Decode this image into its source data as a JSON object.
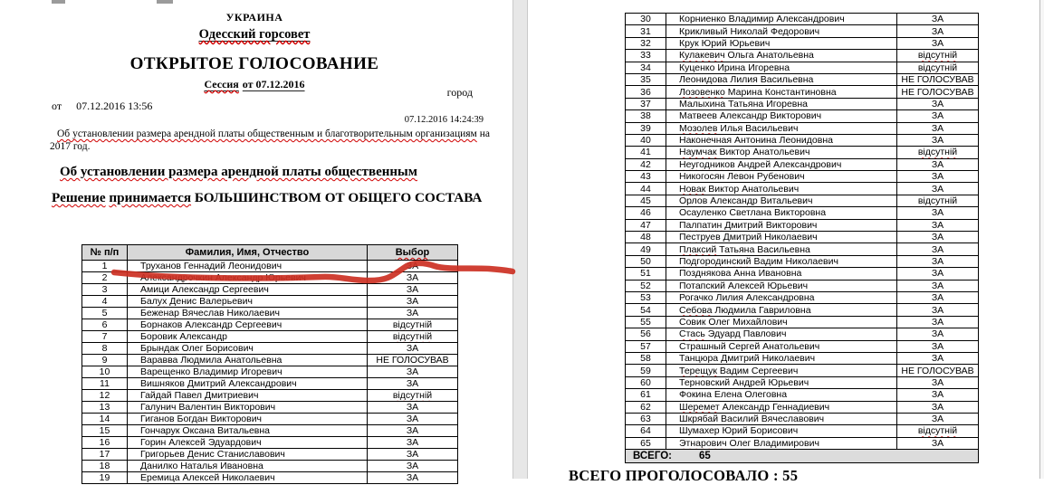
{
  "page_left": {
    "header": {
      "country": "УКРАИНА",
      "council": "Одесский горсовет",
      "title": "ОТКРЫТОЕ ГОЛОСОВАНИЕ",
      "session_word": "Сессия",
      "session_rest": "от 07.12.2016",
      "city_label": "город",
      "from_label": "от",
      "start_datetime": "07.12.2016 13:56",
      "end_datetime": "07.12.2016 14:24:39",
      "subject": "Об установлении размера арендной платы общественным и благотворительным организациям",
      "subject_tail": "на 2017 год.",
      "subject_bold": "Об установлении размера арендной платы общественным",
      "decision_word1": "Решение",
      "decision_word2": "принимается",
      "decision_rest": "БОЛЬШИНСТВОМ ОТ ОБЩЕГО СОСТАВА"
    },
    "table": {
      "headers": [
        "№ п/п",
        "Фамилия, Имя, Отчество",
        "Выбор"
      ],
      "rows": [
        {
          "n": "1",
          "name": "Труханов Геннадий Леонидович",
          "vote": "ЗА",
          "sq": [],
          "u": true
        },
        {
          "n": "2",
          "name": "Александрочкин Александр Юрьевич",
          "vote": "ЗА",
          "sq": [
            0
          ]
        },
        {
          "n": "3",
          "name": "Амици Александр Сергеевич",
          "vote": "ЗА",
          "sq": [
            0
          ]
        },
        {
          "n": "4",
          "name": "Балух Денис Валерьевич",
          "vote": "ЗА",
          "sq": [
            0
          ]
        },
        {
          "n": "5",
          "name": "Беженар Вячеслав Николаевич",
          "vote": "ЗА",
          "sq": [
            0
          ]
        },
        {
          "n": "6",
          "name": "Борнаков Александр Сергеевич",
          "vote": "відсутній",
          "sq": [
            0
          ]
        },
        {
          "n": "7",
          "name": "Боровик Александр",
          "vote": "відсутній",
          "sq": []
        },
        {
          "n": "8",
          "name": "Брындак Олег Борисович",
          "vote": "ЗА",
          "sq": [
            0
          ]
        },
        {
          "n": "9",
          "name": "Варавва Людмила Анатольевна",
          "vote": "НЕ ГОЛОСУВАВ",
          "sq": []
        },
        {
          "n": "10",
          "name": "Варещенко Владимир Игоревич",
          "vote": "ЗА",
          "sq": [
            0
          ]
        },
        {
          "n": "11",
          "name": "Вишняков Дмитрий Александрович",
          "vote": "ЗА",
          "sq": []
        },
        {
          "n": "12",
          "name": "Гайдай Павел Дмитриевич",
          "vote": "відсутній",
          "sq": []
        },
        {
          "n": "13",
          "name": "Галунич Валентин Викторович",
          "vote": "ЗА",
          "sq": [
            0
          ]
        },
        {
          "n": "14",
          "name": "Гиганов Богдан Викторович",
          "vote": "ЗА",
          "sq": [
            0
          ]
        },
        {
          "n": "15",
          "name": "Гончарук Оксана Витальевна",
          "vote": "ЗА",
          "sq": []
        },
        {
          "n": "16",
          "name": "Горин Алексей Эдуардович",
          "vote": "ЗА",
          "sq": []
        },
        {
          "n": "17",
          "name": "Григорьев Денис Станиславович",
          "vote": "ЗА",
          "sq": []
        },
        {
          "n": "18",
          "name": "Данилко Наталья Ивановна",
          "vote": "ЗА",
          "sq": []
        },
        {
          "n": "19",
          "name": "Еремица Алексей Николаевич",
          "vote": "ЗА",
          "sq": []
        }
      ]
    }
  },
  "page_right": {
    "table": {
      "rows": [
        {
          "n": "30",
          "name": "Корниенко Владимир Александрович",
          "vote": "ЗА",
          "sq": []
        },
        {
          "n": "31",
          "name": "Крикливый Николай Федорович",
          "vote": "ЗА",
          "sq": []
        },
        {
          "n": "32",
          "name": "Крук Юрий Юрьевич",
          "vote": "ЗА",
          "sq": [
            0
          ]
        },
        {
          "n": "33",
          "name": "Кулакевич Ольга Анатольевна",
          "vote": "відсутній",
          "sq": [
            0
          ]
        },
        {
          "n": "34",
          "name": "Куценко Ирина Игоревна",
          "vote": "відсутній",
          "sq": []
        },
        {
          "n": "35",
          "name": "Леонидова Лилия Васильевна",
          "vote": "НЕ ГОЛОСУВАВ",
          "sq": []
        },
        {
          "n": "36",
          "name": "Лозовенко Марина Константиновна",
          "vote": "НЕ ГОЛОСУВАВ",
          "sq": [
            0
          ]
        },
        {
          "n": "37",
          "name": "Малыхина Татьяна Игоревна",
          "vote": "ЗА",
          "sq": []
        },
        {
          "n": "38",
          "name": "Матвеев Александр Викторович",
          "vote": "ЗА",
          "sq": []
        },
        {
          "n": "39",
          "name": "Мозолев Илья Васильевич",
          "vote": "ЗА",
          "sq": [
            0
          ]
        },
        {
          "n": "40",
          "name": "Наконечная Антонина Леонидовна",
          "vote": "ЗА",
          "sq": []
        },
        {
          "n": "41",
          "name": "Наумчак Виктор Анатольевич",
          "vote": "відсутній",
          "sq": [
            0
          ]
        },
        {
          "n": "42",
          "name": "Неугодников Андрей Александрович",
          "vote": "ЗА",
          "sq": [
            0
          ]
        },
        {
          "n": "43",
          "name": "Никогосян Левон Рубенович",
          "vote": "ЗА",
          "sq": [
            0,
            2
          ]
        },
        {
          "n": "44",
          "name": "Новак Виктор Анатольевич",
          "vote": "ЗА",
          "sq": [
            0
          ]
        },
        {
          "n": "45",
          "name": "Орлов Александр Витальевич",
          "vote": "відсутній",
          "sq": []
        },
        {
          "n": "46",
          "name": "Осауленко Светлана Викторовна",
          "vote": "ЗА",
          "sq": []
        },
        {
          "n": "47",
          "name": "Палпатин Дмитрий Викторович",
          "vote": "ЗА",
          "sq": [
            0
          ]
        },
        {
          "n": "48",
          "name": "Пеструев Дмитрий Николаевич",
          "vote": "ЗА",
          "sq": [
            0
          ]
        },
        {
          "n": "49",
          "name": "Плаксий Татьяна Васильевна",
          "vote": "ЗА",
          "sq": [
            0
          ]
        },
        {
          "n": "50",
          "name": "Подгородинский Вадим Николаевич",
          "vote": "ЗА",
          "sq": [
            0
          ]
        },
        {
          "n": "51",
          "name": "Позднякова Анна Ивановна",
          "vote": "ЗА",
          "sq": []
        },
        {
          "n": "52",
          "name": "Потапский Алексей Юрьевич",
          "vote": "ЗА",
          "sq": [
            0
          ]
        },
        {
          "n": "53",
          "name": "Рогачко Лилия Александровна",
          "vote": "ЗА",
          "sq": [
            0
          ]
        },
        {
          "n": "54",
          "name": "Себова Людмила Гавриловна",
          "vote": "ЗА",
          "sq": [
            0
          ]
        },
        {
          "n": "55",
          "name": "Совик Олег Михайлович",
          "vote": "ЗА",
          "sq": []
        },
        {
          "n": "56",
          "name": "Стась Эдуард Павлович",
          "vote": "ЗА",
          "sq": [
            0
          ]
        },
        {
          "n": "57",
          "name": "Страшный Сергей Анатольевич",
          "vote": "ЗА",
          "sq": []
        },
        {
          "n": "58",
          "name": "Танцюра Дмитрий Николаевич",
          "vote": "ЗА",
          "sq": []
        },
        {
          "n": "59",
          "name": "Терещук Вадим Сергеевич",
          "vote": "НЕ ГОЛОСУВАВ",
          "sq": [
            0
          ]
        },
        {
          "n": "60",
          "name": "Терновский Андрей Юрьевич",
          "vote": "ЗА",
          "sq": []
        },
        {
          "n": "61",
          "name": "Фокина Елена Олеговна",
          "vote": "ЗА",
          "sq": []
        },
        {
          "n": "62",
          "name": "Шеремет Александр Геннадиевич",
          "vote": "ЗА",
          "sq": [
            0
          ]
        },
        {
          "n": "63",
          "name": "Шкрябай Василий Вячеславович",
          "vote": "ЗА",
          "sq": []
        },
        {
          "n": "64",
          "name": "Шумахер Юрий Борисович",
          "vote": "відсутній",
          "sq": []
        },
        {
          "n": "65",
          "name": "Этнарович Олег Владимирович",
          "vote": "ЗА",
          "sq": [
            0
          ]
        }
      ]
    },
    "total_label": "ВСЕГО:",
    "total_value": "65",
    "bottom_partial_text": "ВСЕГО ПРОГОЛОСОВАЛО : 55"
  },
  "annotation": {
    "type": "hand-drawn-red-underline",
    "target": "Труханов Геннадий Леонидович — ЗА",
    "color": "#cc3023"
  },
  "colors": {
    "squiggle_red": "#d00000",
    "table_header_bg": "#d8d8d8",
    "total_row_bg": "#dcdcdc",
    "page_gap_bg": "#e7e7e7"
  }
}
